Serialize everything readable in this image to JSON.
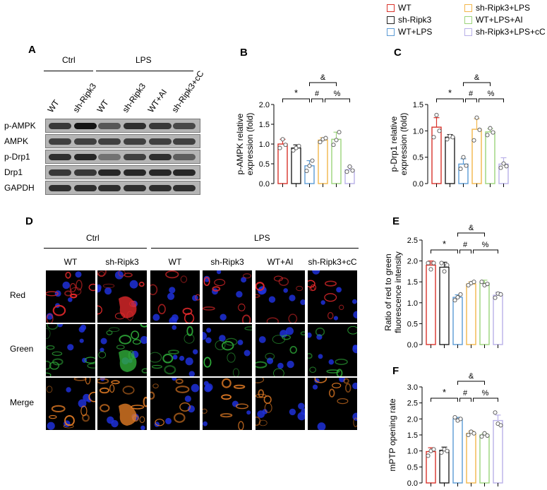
{
  "legend": [
    {
      "label": "WT",
      "color": "#d9332b"
    },
    {
      "label": "sh-Ripk3+LPS",
      "color": "#f3b64a"
    },
    {
      "label": "sh-Ripk3",
      "color": "#222222"
    },
    {
      "label": "WT+LPS+AI",
      "color": "#9bd47a"
    },
    {
      "label": "WT+LPS",
      "color": "#5b9bd5"
    },
    {
      "label": "sh-Ripk3+LPS+cC",
      "color": "#b8b0e8"
    }
  ],
  "panelA": {
    "letter": "A",
    "group_ctrl": "Ctrl",
    "group_lps": "LPS",
    "columns": [
      "WT",
      "sh-Ripk3",
      "WT",
      "sh-Ripk3",
      "WT+AI",
      "sh-Ripk3+cC"
    ],
    "rows": [
      "p-AMPK",
      "AMPK",
      "p-Drp1",
      "Drp1",
      "GAPDH"
    ],
    "intensity": [
      [
        0.75,
        0.95,
        0.55,
        0.8,
        0.75,
        0.65
      ],
      [
        0.7,
        0.7,
        0.7,
        0.7,
        0.7,
        0.7
      ],
      [
        0.8,
        0.85,
        0.35,
        0.7,
        0.8,
        0.5
      ],
      [
        0.75,
        0.75,
        0.85,
        0.85,
        0.85,
        0.85
      ],
      [
        0.8,
        0.8,
        0.8,
        0.8,
        0.8,
        0.8
      ]
    ]
  },
  "panelD": {
    "letter": "D",
    "group_ctrl": "Ctrl",
    "group_lps": "LPS",
    "columns": [
      "WT",
      "sh-Ripk3",
      "WT",
      "sh-Ripk3",
      "WT+AI",
      "sh-Ripk3+cC"
    ],
    "rows": [
      "Red",
      "Green",
      "Merge"
    ]
  },
  "colors": {
    "c1": "#d9332b",
    "c2": "#222222",
    "c3": "#5b9bd5",
    "c4": "#f3b64a",
    "c5": "#9bd47a",
    "c6": "#b8b0e8"
  },
  "chart_data": [
    {
      "letter": "B",
      "type": "bar",
      "ylabel": "p-AMPK relative\nexpression (fold)",
      "ylim": [
        0,
        2.0
      ],
      "yticks": [
        "0.0",
        "0.5",
        "1.0",
        "1.5",
        "2.0"
      ],
      "values": [
        1.0,
        0.9,
        0.45,
        1.1,
        1.12,
        0.35
      ],
      "errors": [
        0.12,
        0.08,
        0.13,
        0.06,
        0.18,
        0.07
      ],
      "points": [
        [
          0.9,
          1.12,
          0.98
        ],
        [
          0.84,
          0.9,
          0.95
        ],
        [
          0.32,
          0.45,
          0.58
        ],
        [
          1.05,
          1.12,
          1.15
        ],
        [
          0.98,
          1.1,
          1.3
        ],
        [
          0.3,
          0.43,
          0.33
        ]
      ],
      "sig": {
        "star": "*",
        "hash": "#",
        "pct": "%",
        "amp": "&"
      }
    },
    {
      "letter": "C",
      "type": "bar",
      "ylabel": "p-Drp1 relative\nexpression (fold)",
      "ylim": [
        0,
        1.5
      ],
      "yticks": [
        "0.0",
        "0.5",
        "1.0",
        "1.5"
      ],
      "values": [
        1.07,
        0.88,
        0.37,
        1.03,
        0.98,
        0.37
      ],
      "errors": [
        0.18,
        0.05,
        0.1,
        0.2,
        0.06,
        0.12
      ],
      "points": [
        [
          0.88,
          1.3,
          1.0
        ],
        [
          0.84,
          0.9,
          0.88
        ],
        [
          0.28,
          0.5,
          0.34
        ],
        [
          0.82,
          1.25,
          1.02
        ],
        [
          0.92,
          1.05,
          0.97
        ],
        [
          0.3,
          0.38,
          0.33
        ]
      ],
      "sig": {
        "star": "*",
        "hash": "#",
        "pct": "%",
        "amp": "&"
      }
    },
    {
      "letter": "E",
      "type": "bar",
      "ylabel": "Ratio of red to green\nfluorescence intensity",
      "ylim": [
        0,
        2.5
      ],
      "yticks": [
        "0.0",
        "0.5",
        "1.0",
        "1.5",
        "2.0",
        "2.5"
      ],
      "values": [
        1.9,
        1.85,
        1.13,
        1.45,
        1.47,
        1.18
      ],
      "errors": [
        0.1,
        0.12,
        0.06,
        0.05,
        0.07,
        0.07
      ],
      "points": [
        [
          1.95,
          1.8,
          1.95
        ],
        [
          1.95,
          1.75,
          1.9
        ],
        [
          1.06,
          1.13,
          1.2
        ],
        [
          1.42,
          1.47,
          1.5
        ],
        [
          1.5,
          1.42,
          1.45
        ],
        [
          1.12,
          1.22,
          1.2
        ]
      ],
      "sig": {
        "star": "*",
        "hash": "#",
        "pct": "%",
        "amp": "&"
      }
    },
    {
      "letter": "F",
      "type": "bar",
      "ylabel": "mPTP opening rate",
      "ylim": [
        0,
        3.0
      ],
      "yticks": [
        "0.0",
        "0.5",
        "1.0",
        "1.5",
        "2.0",
        "2.5",
        "3.0"
      ],
      "values": [
        0.98,
        1.02,
        2.0,
        1.55,
        1.5,
        1.95
      ],
      "errors": [
        0.12,
        0.1,
        0.05,
        0.07,
        0.05,
        0.17
      ],
      "points": [
        [
          0.85,
          1.0,
          1.05
        ],
        [
          0.95,
          1.05,
          1.0
        ],
        [
          2.05,
          1.95,
          2.0
        ],
        [
          1.5,
          1.6,
          1.55
        ],
        [
          1.45,
          1.55,
          1.48
        ],
        [
          2.2,
          1.85,
          1.8
        ]
      ],
      "sig": {
        "star": "*",
        "hash": "#",
        "pct": "%",
        "amp": "&"
      }
    }
  ]
}
